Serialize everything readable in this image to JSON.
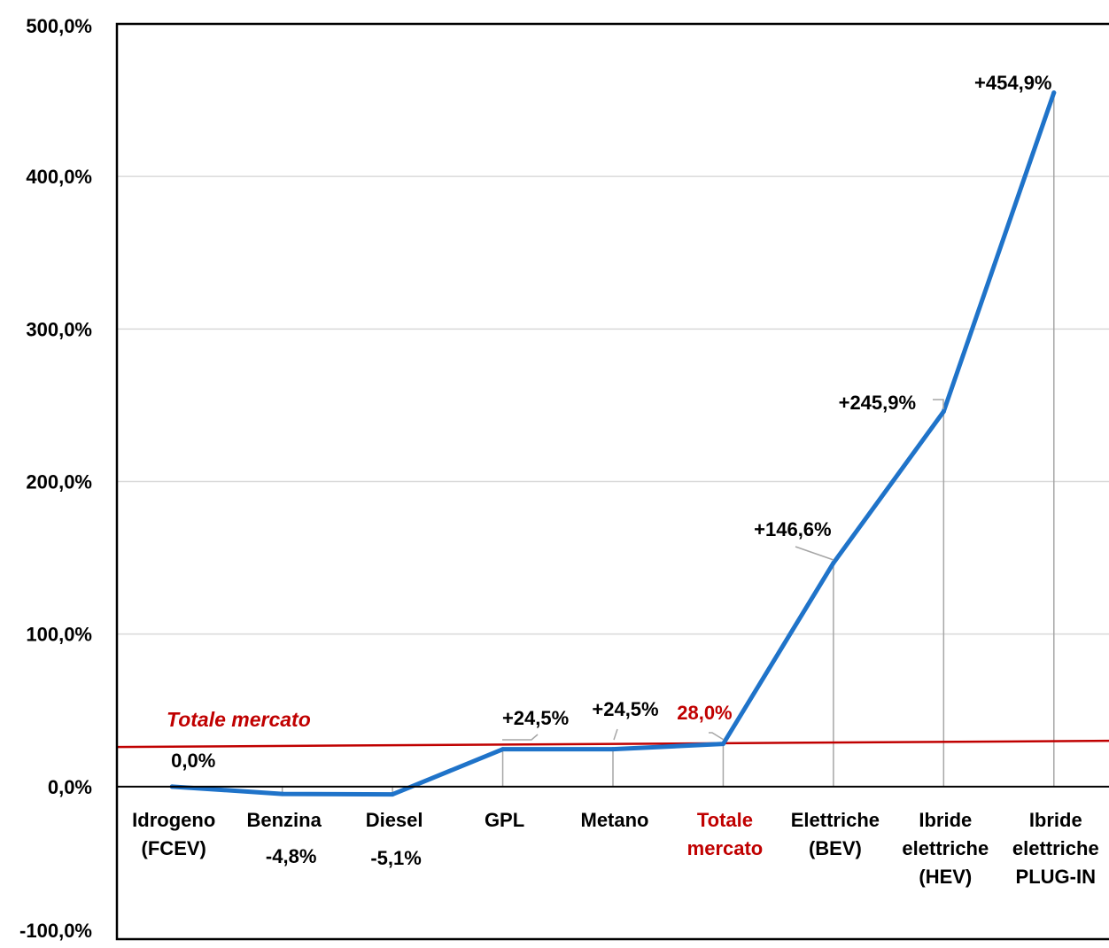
{
  "chart_data": {
    "type": "line",
    "categories": [
      [
        "Idrogeno",
        "(FCEV)"
      ],
      [
        "Benzina"
      ],
      [
        "Diesel"
      ],
      [
        "GPL"
      ],
      [
        "Metano"
      ],
      [
        "Totale",
        "mercato"
      ],
      [
        "Elettriche",
        "(BEV)"
      ],
      [
        "Ibride",
        "elettriche",
        "(HEV)"
      ],
      [
        "Ibride",
        "elettriche",
        "PLUG-IN"
      ]
    ],
    "highlight_category_index": 5,
    "series": [
      {
        "values": [
          0.0,
          -4.8,
          -5.1,
          24.5,
          24.5,
          28.0,
          146.6,
          245.9,
          454.9
        ],
        "color": "#1f73c9",
        "labels": [
          "0,0%",
          "-4,8%",
          "-5,1%",
          "+24,5%",
          "+24,5%",
          "28,0%",
          "+146,6%",
          "+245,9%",
          "+454,9%"
        ]
      }
    ],
    "reference_line": {
      "label": "Totale mercato",
      "start_value": 26.0,
      "end_value": 30.0,
      "color": "#c00000"
    },
    "ylim": [
      -100,
      500
    ],
    "yticks": [
      -100,
      0,
      100,
      200,
      300,
      400,
      500
    ],
    "ytick_labels": [
      "-100,0%",
      "0,0%",
      "100,0%",
      "200,0%",
      "300,0%",
      "400,0%",
      "500,0%"
    ],
    "grid": true,
    "highlight_color": "#c00000",
    "title": "",
    "xlabel": "",
    "ylabel": ""
  }
}
